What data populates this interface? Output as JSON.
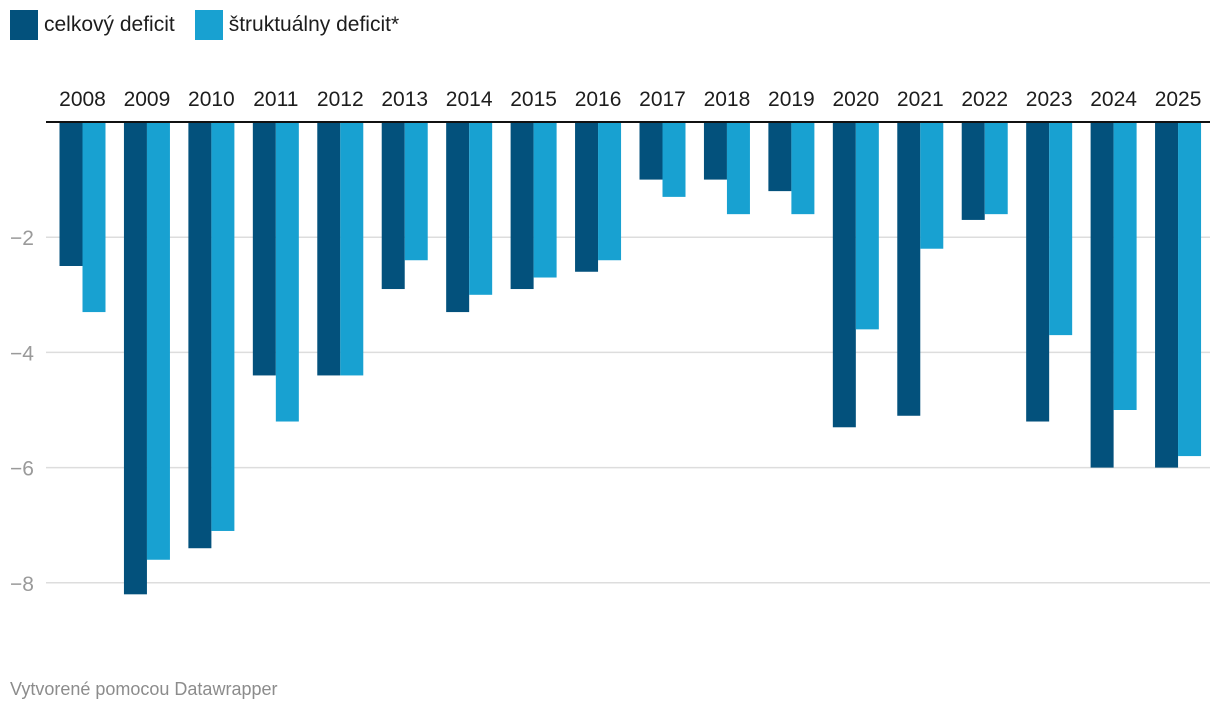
{
  "colors": {
    "series1": "#03517c",
    "series2": "#18a1d1",
    "grid": "#dddddd",
    "axis": "#111111"
  },
  "legend": [
    {
      "label": "celkový deficit"
    },
    {
      "label": "štruktuálny deficit*"
    }
  ],
  "footer": {
    "credit": "Vytvorené pomocou Datawrapper"
  },
  "chart_data": {
    "type": "bar",
    "categories": [
      "2008",
      "2009",
      "2010",
      "2011",
      "2012",
      "2013",
      "2014",
      "2015",
      "2016",
      "2017",
      "2018",
      "2019",
      "2020",
      "2021",
      "2022",
      "2023",
      "2024",
      "2025"
    ],
    "series": [
      {
        "name": "celkový deficit",
        "values": [
          -2.5,
          -8.2,
          -7.4,
          -4.4,
          -4.4,
          -2.9,
          -3.3,
          -2.9,
          -2.6,
          -1.0,
          -1.0,
          -1.2,
          -5.3,
          -5.1,
          -1.7,
          -5.2,
          -6.0,
          -6.0
        ]
      },
      {
        "name": "štruktuálny deficit*",
        "values": [
          -3.3,
          -7.6,
          -7.1,
          -5.2,
          -4.4,
          -2.4,
          -3.0,
          -2.7,
          -2.4,
          -1.3,
          -1.6,
          -1.6,
          -3.6,
          -2.2,
          -1.6,
          -3.7,
          -5.0,
          -5.8
        ]
      }
    ],
    "yticks": [
      -2,
      -4,
      -6,
      -8
    ],
    "ytick_labels": [
      "−2",
      "−4",
      "−6",
      "−8"
    ],
    "ylim": [
      -8.5,
      0
    ],
    "grid": true,
    "xaxis_position": "top",
    "legend_position": "top-left"
  }
}
